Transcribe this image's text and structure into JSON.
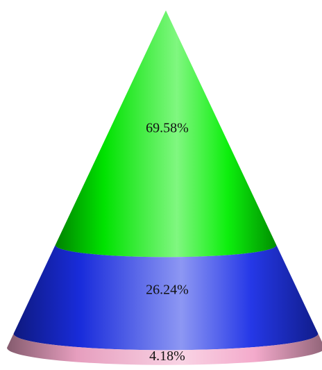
{
  "chart_data": {
    "type": "pyramid",
    "shape": "cone",
    "grid": false,
    "legend": "none",
    "segments": [
      {
        "value": 69.58,
        "label": "69.58%",
        "color": "#00ee00"
      },
      {
        "value": 26.24,
        "label": "26.24%",
        "color": "#1a2ee6"
      },
      {
        "value": 4.18,
        "label": "4.18%",
        "color": "#f2a6c8"
      }
    ]
  }
}
